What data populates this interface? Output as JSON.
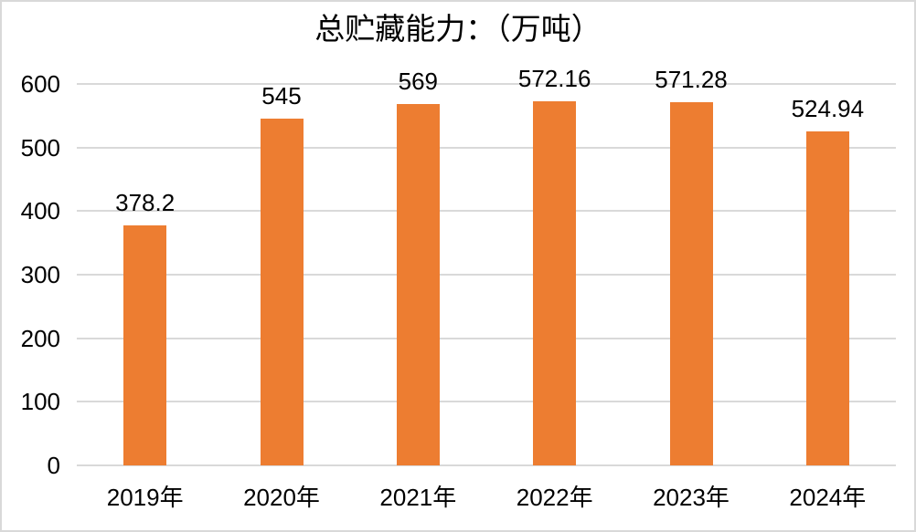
{
  "chart_data": {
    "type": "bar",
    "title": "总贮藏能力：（万吨）",
    "categories": [
      "2019年",
      "2020年",
      "2021年",
      "2022年",
      "2023年",
      "2024年"
    ],
    "values": [
      378.2,
      545,
      569,
      572.16,
      571.28,
      524.94
    ],
    "data_labels": [
      "378.2",
      "545",
      "569",
      "572.16",
      "571.28",
      "524.94"
    ],
    "xlabel": "",
    "ylabel": "",
    "ylim": [
      0,
      600
    ],
    "yticks": [
      0,
      100,
      200,
      300,
      400,
      500,
      600
    ],
    "grid": true,
    "legend": false,
    "bar_color": "#ED7D31",
    "gridline_color": "#D9D9D9",
    "frame_border_color": "#D9D9D9",
    "background_color": "#FFFFFF",
    "text_color": "#000000"
  }
}
